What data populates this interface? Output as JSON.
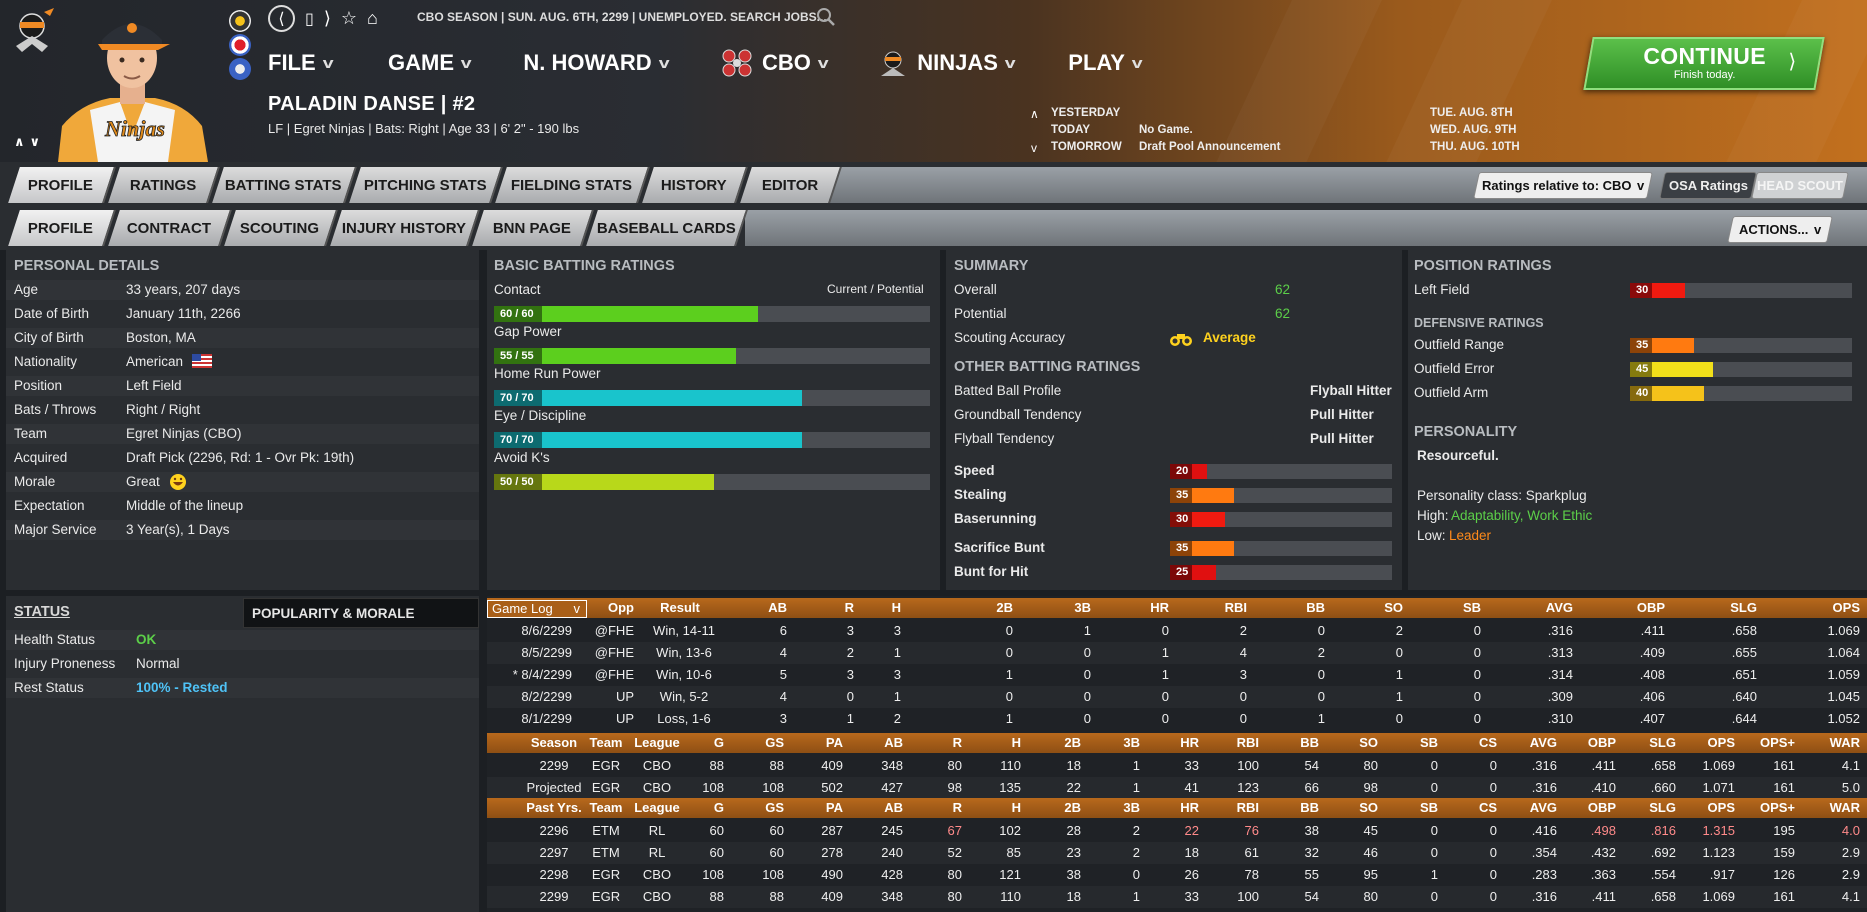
{
  "header": {
    "status_line": "CBO SEASON  |  SUN. AUG. 6TH, 2299  |  UNEMPLOYED. SEARCH JOBS...",
    "menu": [
      {
        "label": "FILE"
      },
      {
        "label": "GAME"
      },
      {
        "label": "N. HOWARD"
      },
      {
        "label": "CBO"
      },
      {
        "label": "NINJAS"
      },
      {
        "label": "PLAY"
      }
    ],
    "player_name": "PALADIN DANSE  |  #2",
    "player_sub": "LF | Egret Ninjas  |  Bats: Right  |  Age 33  |  6' 2\" - 190 lbs",
    "schedule": {
      "yesterday_label": "YESTERDAY",
      "today_label": "TODAY",
      "today_value": "No Game.",
      "tomorrow_label": "TOMORROW",
      "tomorrow_value": "Draft Pool Announcement",
      "date1": "TUE. AUG. 8TH",
      "date2": "WED. AUG. 9TH",
      "date3": "THU. AUG. 10TH"
    },
    "continue_label": "CONTINUE",
    "continue_sub": "Finish today."
  },
  "tabs_main": [
    "PROFILE",
    "RATINGS",
    "BATTING STATS",
    "PITCHING STATS",
    "FIELDING STATS",
    "HISTORY",
    "EDITOR"
  ],
  "tabs_sub": [
    "PROFILE",
    "CONTRACT",
    "SCOUTING",
    "INJURY HISTORY",
    "BNN PAGE",
    "BASEBALL CARDS"
  ],
  "ratings_relative": "Ratings relative to: CBO",
  "osa_ratings": "OSA Ratings",
  "head_scout": "HEAD SCOUT",
  "actions": "ACTIONS...",
  "personal": {
    "title": "PERSONAL DETAILS",
    "rows": [
      {
        "label": "Age",
        "value": "33 years, 207 days"
      },
      {
        "label": "Date of Birth",
        "value": "January 11th, 2266"
      },
      {
        "label": "City of Birth",
        "value": "Boston, MA"
      },
      {
        "label": "Nationality",
        "value": "American"
      },
      {
        "label": "Position",
        "value": "Left Field"
      },
      {
        "label": "Bats / Throws",
        "value": "Right / Right"
      },
      {
        "label": "Team",
        "value": "Egret Ninjas (CBO)"
      },
      {
        "label": "Acquired",
        "value": "Draft Pick (2296, Rd: 1 - Ovr Pk: 19th)"
      },
      {
        "label": "Morale",
        "value": "Great"
      },
      {
        "label": "Expectation",
        "value": "Middle of the lineup"
      },
      {
        "label": "Major Service",
        "value": "3 Year(s), 1 Days"
      }
    ]
  },
  "batting": {
    "title": "BASIC BATTING RATINGS",
    "current_potential": "Current / Potential",
    "ratings": [
      {
        "label": "Contact",
        "value": "60 / 60",
        "level": 0.6,
        "color": "#5ccf1e"
      },
      {
        "label": "Gap Power",
        "value": "55 / 55",
        "level": 0.55,
        "color": "#5ccf1e"
      },
      {
        "label": "Home Run Power",
        "value": "70 / 70",
        "level": 0.7,
        "color": "#19c4cc"
      },
      {
        "label": "Eye / Discipline",
        "value": "70 / 70",
        "level": 0.7,
        "color": "#19c4cc"
      },
      {
        "label": "Avoid K's",
        "value": "50 / 50",
        "level": 0.5,
        "color": "#b8d81a"
      }
    ]
  },
  "summary": {
    "title": "SUMMARY",
    "overall_label": "Overall",
    "overall": "62",
    "potential_label": "Potential",
    "potential": "62",
    "scouting_label": "Scouting Accuracy",
    "scouting": "Average",
    "other_title": "OTHER BATTING RATINGS",
    "other": [
      {
        "label": "Batted Ball Profile",
        "value": "Flyball Hitter"
      },
      {
        "label": "Groundball Tendency",
        "value": "Pull Hitter"
      },
      {
        "label": "Flyball Tendency",
        "value": "Pull Hitter"
      }
    ],
    "bars": [
      {
        "label": "Speed",
        "value": "20",
        "level": 0.2,
        "color": "#e01010"
      },
      {
        "label": "Stealing",
        "value": "35",
        "level": 0.35,
        "color": "#ff7a10"
      },
      {
        "label": "Baserunning",
        "value": "30",
        "level": 0.3,
        "color": "#f01a10"
      },
      {
        "label": "Sacrifice Bunt",
        "value": "35",
        "level": 0.35,
        "color": "#ff7a10"
      },
      {
        "label": "Bunt for Hit",
        "value": "25",
        "level": 0.25,
        "color": "#e01010"
      }
    ]
  },
  "position": {
    "title": "POSITION RATINGS",
    "left_field_label": "Left Field",
    "left_field": "30",
    "left_field_level": 0.3,
    "defensive_title": "DEFENSIVE RATINGS",
    "defensive": [
      {
        "label": "Outfield Range",
        "value": "35",
        "level": 0.35,
        "color": "#ff7a10"
      },
      {
        "label": "Outfield Error",
        "value": "45",
        "level": 0.45,
        "color": "#f2e01a"
      },
      {
        "label": "Outfield Arm",
        "value": "40",
        "level": 0.4,
        "color": "#f5c21a"
      }
    ],
    "personality_title": "PERSONALITY",
    "personality": "Resourceful.",
    "personality_class": "Personality class: Sparkplug",
    "high_label": "High:",
    "high": "Adaptability, Work Ethic",
    "low_label": "Low:",
    "low": "Leader"
  },
  "status": {
    "title": "STATUS",
    "popularity_title": "POPULARITY & MORALE",
    "rows": [
      {
        "label": "Health Status",
        "value": "OK"
      },
      {
        "label": "Injury Proneness",
        "value": "Normal"
      },
      {
        "label": "Rest Status",
        "value": "100% - Rested"
      }
    ]
  },
  "game_log": {
    "selector": "Game Log",
    "headers": [
      "Opp",
      "Result",
      "AB",
      "R",
      "H",
      "2B",
      "3B",
      "HR",
      "RBI",
      "BB",
      "SO",
      "SB",
      "AVG",
      "OBP",
      "SLG",
      "OPS"
    ],
    "rows": [
      {
        "date": "8/6/2299",
        "cells": [
          "@FHE",
          "Win, 14-11",
          "6",
          "3",
          "3",
          "0",
          "1",
          "0",
          "2",
          "0",
          "2",
          "0",
          ".316",
          ".411",
          ".658",
          "1.069"
        ]
      },
      {
        "date": "8/5/2299",
        "cells": [
          "@FHE",
          "Win, 13-6",
          "4",
          "2",
          "1",
          "0",
          "0",
          "1",
          "4",
          "2",
          "0",
          "0",
          ".313",
          ".409",
          ".655",
          "1.064"
        ]
      },
      {
        "date": "* 8/4/2299",
        "cells": [
          "@FHE",
          "Win, 10-6",
          "5",
          "3",
          "3",
          "1",
          "0",
          "1",
          "3",
          "0",
          "1",
          "0",
          ".314",
          ".408",
          ".651",
          "1.059"
        ]
      },
      {
        "date": "8/2/2299",
        "cells": [
          "UP",
          "Win, 5-2",
          "4",
          "0",
          "1",
          "0",
          "0",
          "0",
          "0",
          "0",
          "1",
          "0",
          ".309",
          ".406",
          ".640",
          "1.045"
        ]
      },
      {
        "date": "8/1/2299",
        "cells": [
          "UP",
          "Loss, 1-6",
          "3",
          "1",
          "2",
          "1",
          "0",
          "0",
          "0",
          "1",
          "0",
          "0",
          ".310",
          ".407",
          ".644",
          "1.052"
        ]
      }
    ]
  },
  "season": {
    "headers": [
      "Season",
      "Team",
      "League",
      "G",
      "GS",
      "PA",
      "AB",
      "R",
      "H",
      "2B",
      "3B",
      "HR",
      "RBI",
      "BB",
      "SO",
      "SB",
      "CS",
      "AVG",
      "OBP",
      "SLG",
      "OPS",
      "OPS+",
      "WAR"
    ],
    "rows": [
      [
        "2299",
        "EGR",
        "CBO",
        "88",
        "88",
        "409",
        "348",
        "80",
        "110",
        "18",
        "1",
        "33",
        "100",
        "54",
        "80",
        "0",
        "0",
        ".316",
        ".411",
        ".658",
        "1.069",
        "161",
        "4.1"
      ],
      [
        "Projected",
        "EGR",
        "CBO",
        "108",
        "108",
        "502",
        "427",
        "98",
        "135",
        "22",
        "1",
        "41",
        "123",
        "66",
        "98",
        "0",
        "0",
        ".316",
        ".410",
        ".660",
        "1.071",
        "161",
        "5.0"
      ]
    ]
  },
  "past": {
    "headers": [
      "Past Yrs.",
      "Team",
      "League",
      "G",
      "GS",
      "PA",
      "AB",
      "R",
      "H",
      "2B",
      "3B",
      "HR",
      "RBI",
      "BB",
      "SO",
      "SB",
      "CS",
      "AVG",
      "OBP",
      "SLG",
      "OPS",
      "OPS+",
      "WAR"
    ],
    "rows": [
      [
        "2296",
        "ETM",
        "RL",
        "60",
        "60",
        "287",
        "245",
        "67",
        "102",
        "28",
        "2",
        "22",
        "76",
        "38",
        "45",
        "0",
        "0",
        ".416",
        ".498",
        ".816",
        "1.315",
        "195",
        "4.0"
      ],
      [
        "2297",
        "ETM",
        "RL",
        "60",
        "60",
        "278",
        "240",
        "52",
        "85",
        "23",
        "2",
        "18",
        "61",
        "32",
        "46",
        "0",
        "0",
        ".354",
        ".432",
        ".692",
        "1.123",
        "159",
        "2.9"
      ],
      [
        "2298",
        "EGR",
        "CBO",
        "108",
        "108",
        "490",
        "428",
        "80",
        "121",
        "38",
        "0",
        "26",
        "78",
        "55",
        "95",
        "1",
        "0",
        ".283",
        ".363",
        ".554",
        ".917",
        "126",
        "2.9"
      ],
      [
        "2299",
        "EGR",
        "CBO",
        "88",
        "88",
        "409",
        "348",
        "80",
        "110",
        "18",
        "1",
        "33",
        "100",
        "54",
        "80",
        "0",
        "0",
        ".316",
        ".411",
        ".658",
        "1.069",
        "161",
        "4.1"
      ]
    ],
    "highlight_color": "#ff8a8a"
  }
}
